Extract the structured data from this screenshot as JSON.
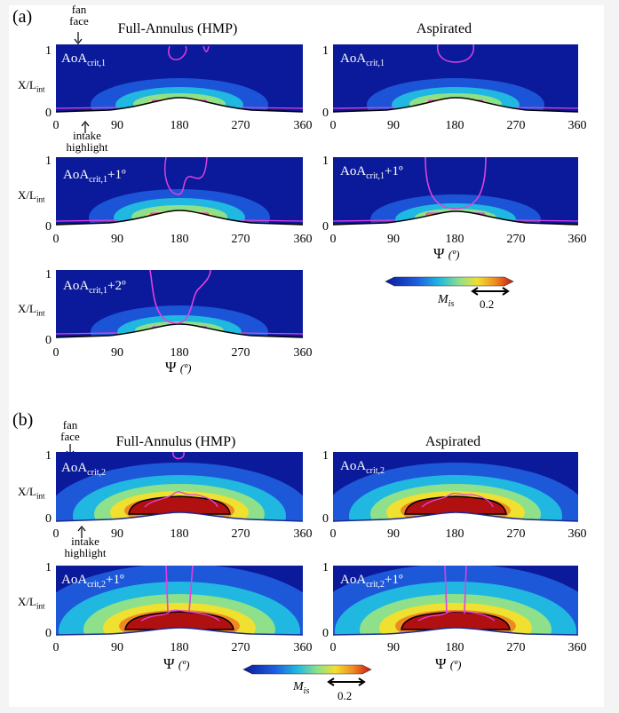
{
  "parts": {
    "a": "(a)",
    "b": "(b)"
  },
  "columns": {
    "left": "Full-Annulus (HMP)",
    "right": "Aspirated"
  },
  "annotations": {
    "fan_face": [
      "fan",
      "face"
    ],
    "intake_highlight": [
      "intake",
      "highlight"
    ]
  },
  "axes": {
    "ylabel_main": "X/L",
    "ylabel_sub": "int",
    "yticks": [
      "1",
      "0"
    ],
    "xticks": [
      "0",
      "90",
      "180",
      "270",
      "360"
    ],
    "xlabel_symbol": "Ψ",
    "xlabel_unit": "(º)"
  },
  "colorbar": {
    "label": "M",
    "label_sub": "is",
    "scale": "0.2",
    "colors": [
      "#ffffff",
      "#0a1a9a",
      "#1f5fe0",
      "#20b8e0",
      "#8ee08a",
      "#f0e030",
      "#f08a20",
      "#c81414",
      "#ffffff"
    ]
  },
  "panels": {
    "a1_left": {
      "base": "AoA",
      "sub": "crit,1",
      "suffix": ""
    },
    "a1_right": {
      "base": "AoA",
      "sub": "crit,1",
      "suffix": ""
    },
    "a2_left": {
      "base": "AoA",
      "sub": "crit,1",
      "suffix": "+1º"
    },
    "a2_right": {
      "base": "AoA",
      "sub": "crit,1",
      "suffix": "+1º"
    },
    "a3_left": {
      "base": "AoA",
      "sub": "crit,1",
      "suffix": "+2º"
    },
    "b1_left": {
      "base": "AoA",
      "sub": "crit,2",
      "suffix": ""
    },
    "b1_right": {
      "base": "AoA",
      "sub": "crit,2",
      "suffix": ""
    },
    "b2_left": {
      "base": "AoA",
      "sub": "crit,2",
      "suffix": "+1º"
    },
    "b2_right": {
      "base": "AoA",
      "sub": "crit,2",
      "suffix": "+1º"
    }
  }
}
